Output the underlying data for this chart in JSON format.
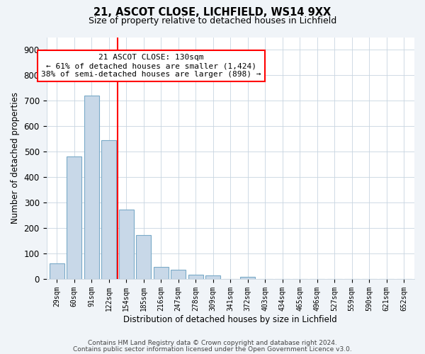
{
  "title": "21, ASCOT CLOSE, LICHFIELD, WS14 9XX",
  "subtitle": "Size of property relative to detached houses in Lichfield",
  "xlabel": "Distribution of detached houses by size in Lichfield",
  "ylabel": "Number of detached properties",
  "bar_labels": [
    "29sqm",
    "60sqm",
    "91sqm",
    "122sqm",
    "154sqm",
    "185sqm",
    "216sqm",
    "247sqm",
    "278sqm",
    "309sqm",
    "341sqm",
    "372sqm",
    "403sqm",
    "434sqm",
    "465sqm",
    "496sqm",
    "527sqm",
    "559sqm",
    "590sqm",
    "621sqm",
    "652sqm"
  ],
  "bar_values": [
    62,
    480,
    720,
    545,
    272,
    172,
    48,
    35,
    18,
    14,
    0,
    8,
    0,
    0,
    0,
    0,
    0,
    0,
    0,
    0,
    0
  ],
  "bar_color": "#c8d8e8",
  "bar_edge_color": "#7aaac8",
  "vline_color": "red",
  "vline_x": 3.5,
  "ylim": [
    0,
    950
  ],
  "yticks": [
    0,
    100,
    200,
    300,
    400,
    500,
    600,
    700,
    800,
    900
  ],
  "annotation_title": "21 ASCOT CLOSE: 130sqm",
  "annotation_line1": "← 61% of detached houses are smaller (1,424)",
  "annotation_line2": "38% of semi-detached houses are larger (898) →",
  "annotation_box_color": "white",
  "annotation_box_edge_color": "red",
  "footer_line1": "Contains HM Land Registry data © Crown copyright and database right 2024.",
  "footer_line2": "Contains public sector information licensed under the Open Government Licence v3.0.",
  "bg_color": "#f0f4f8",
  "plot_bg_color": "white",
  "grid_color": "#c8d4e0"
}
